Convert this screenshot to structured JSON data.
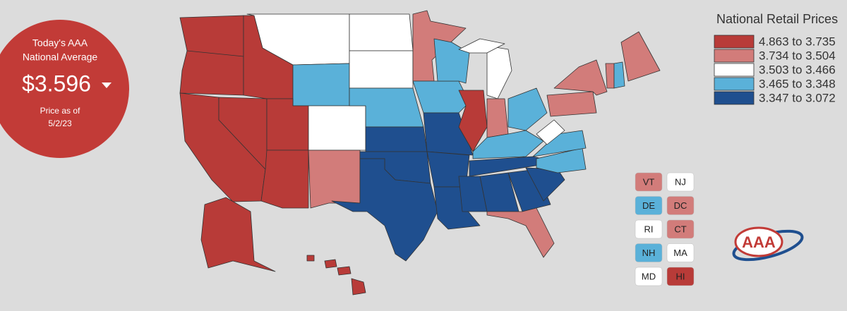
{
  "badge": {
    "line1": "Today's AAA",
    "line2": "National Average",
    "price": "$3.596",
    "note1": "Price as of",
    "note2": "5/2/23"
  },
  "legend": {
    "title": "National Retail Prices",
    "items": [
      {
        "label": "4.863 to 3.735",
        "color": "#b83b38"
      },
      {
        "label": "3.734 to 3.504",
        "color": "#d27c7a"
      },
      {
        "label": "3.503 to 3.466",
        "color": "#ffffff"
      },
      {
        "label": "3.465 to 3.348",
        "color": "#5ab1d9"
      },
      {
        "label": "3.347 to 3.072",
        "color": "#1f4f8f"
      }
    ]
  },
  "small_states": [
    {
      "label": "VT",
      "color": "#d27c7a"
    },
    {
      "label": "NJ",
      "color": "#ffffff"
    },
    {
      "label": "DE",
      "color": "#5ab1d9"
    },
    {
      "label": "DC",
      "color": "#d27c7a"
    },
    {
      "label": "RI",
      "color": "#ffffff"
    },
    {
      "label": "CT",
      "color": "#d27c7a"
    },
    {
      "label": "NH",
      "color": "#5ab1d9"
    },
    {
      "label": "MA",
      "color": "#ffffff"
    },
    {
      "label": "MD",
      "color": "#ffffff"
    },
    {
      "label": "HI",
      "color": "#b83b38"
    }
  ],
  "logo": {
    "text": "AAA"
  }
}
